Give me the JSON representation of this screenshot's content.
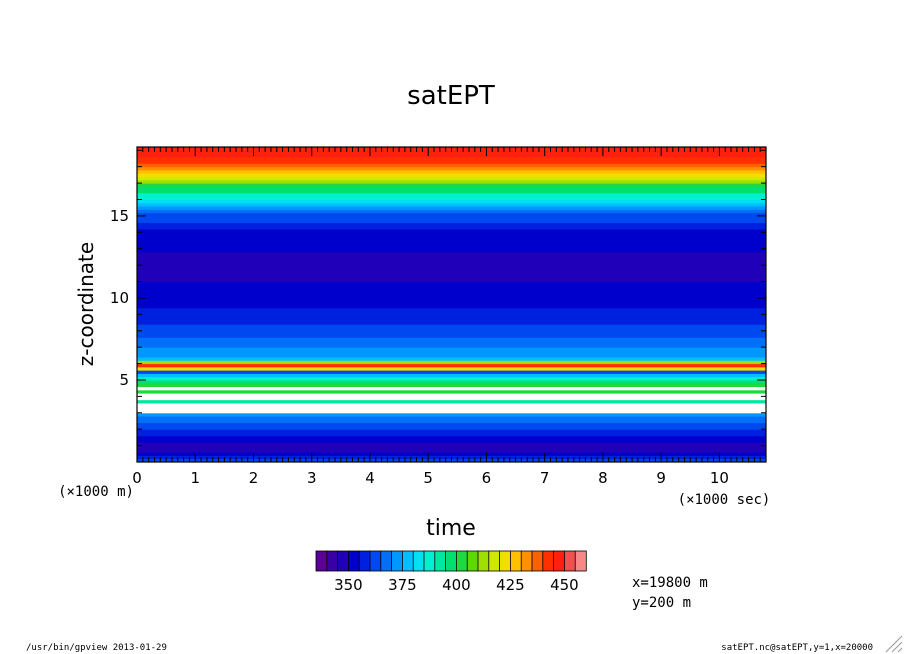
{
  "chart_data": {
    "type": "heatmap",
    "title": "satEPT",
    "xlabel": "time",
    "ylabel": "z-coordinate",
    "x_unit": "(×1000 sec)",
    "y_unit": "(×1000 m)",
    "xlim": [
      0,
      10.8
    ],
    "ylim": [
      0,
      19.2
    ],
    "x_ticks": [
      "0",
      "1",
      "2",
      "3",
      "4",
      "5",
      "6",
      "7",
      "8",
      "9",
      "10"
    ],
    "y_ticks": [
      "5",
      "10",
      "15"
    ],
    "colorbar": {
      "tick_labels": [
        "350",
        "375",
        "400",
        "425",
        "450"
      ],
      "colors": [
        "#5a0099",
        "#3a00a8",
        "#2000b8",
        "#0000cc",
        "#0020e0",
        "#0048f0",
        "#0070f8",
        "#0098ff",
        "#00c0ff",
        "#00e0f0",
        "#00f0d0",
        "#00e8a0",
        "#00e070",
        "#20d840",
        "#60d800",
        "#a0e000",
        "#d0e800",
        "#f0e000",
        "#ffc000",
        "#ff9000",
        "#ff6000",
        "#ff3000",
        "#ff2010",
        "#f05050",
        "#f88888"
      ]
    },
    "z_profile": [
      {
        "z": 0.0,
        "v": 372
      },
      {
        "z": 0.25,
        "v": 360
      },
      {
        "z": 0.8,
        "v": 350
      },
      {
        "z": 1.3,
        "v": 354
      },
      {
        "z": 1.9,
        "v": 362
      },
      {
        "z": 2.4,
        "v": 368
      },
      {
        "z": 3.0,
        "v": 376
      },
      {
        "z": 3.2,
        "v": 386
      },
      {
        "z": 3.6,
        "v": 394
      },
      {
        "z": 4.0,
        "v": 402
      },
      {
        "z": 4.6,
        "v": 410
      },
      {
        "z": 5.2,
        "v": 386
      },
      {
        "z": 5.5,
        "v": 366
      },
      {
        "z": 5.75,
        "v": 440
      },
      {
        "z": 5.95,
        "v": 446
      },
      {
        "z": 6.25,
        "v": 380
      },
      {
        "z": 7.0,
        "v": 372
      },
      {
        "z": 8.5,
        "v": 362
      },
      {
        "z": 10.0,
        "v": 355
      },
      {
        "z": 12.0,
        "v": 350
      },
      {
        "z": 14.0,
        "v": 356
      },
      {
        "z": 15.2,
        "v": 368
      },
      {
        "z": 16.2,
        "v": 390
      },
      {
        "z": 17.0,
        "v": 410
      },
      {
        "z": 17.6,
        "v": 428
      },
      {
        "z": 18.1,
        "v": 440
      },
      {
        "z": 18.6,
        "v": 448
      },
      {
        "z": 19.2,
        "v": 452
      }
    ],
    "white_bands_z": [
      [
        3.0,
        3.3
      ],
      [
        3.4,
        3.6
      ],
      [
        3.9,
        4.2
      ],
      [
        4.35,
        4.5
      ],
      [
        4.7,
        4.85
      ],
      [
        5.35,
        5.45
      ]
    ],
    "annotations": [
      "x=19800 m",
      "y=200 m"
    ]
  },
  "footer": {
    "left": "/usr/bin/gpview  2013-01-29",
    "right": "satEPT.nc@satEPT,y=1,x=20000"
  }
}
